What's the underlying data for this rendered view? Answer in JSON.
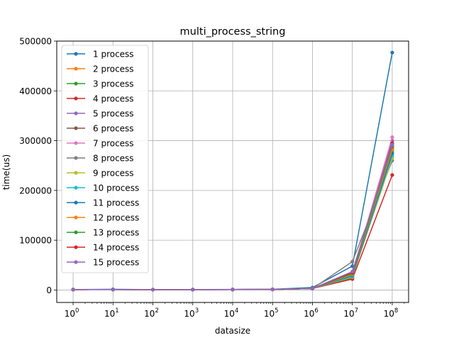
{
  "chart_data": {
    "type": "line",
    "title": "multi_process_string",
    "xlabel": "datasize",
    "ylabel": "time(us)",
    "x_scale": "log",
    "x": [
      1,
      10,
      100,
      1000,
      10000,
      100000,
      1000000,
      10000000,
      100000000
    ],
    "x_ticks": [
      {
        "base": "10",
        "exp": "0"
      },
      {
        "base": "10",
        "exp": "1"
      },
      {
        "base": "10",
        "exp": "2"
      },
      {
        "base": "10",
        "exp": "3"
      },
      {
        "base": "10",
        "exp": "4"
      },
      {
        "base": "10",
        "exp": "5"
      },
      {
        "base": "10",
        "exp": "6"
      },
      {
        "base": "10",
        "exp": "7"
      },
      {
        "base": "10",
        "exp": "8"
      }
    ],
    "ylim": [
      -25000,
      500000
    ],
    "y_ticks": [
      "0",
      "100000",
      "200000",
      "300000",
      "400000",
      "500000"
    ],
    "y_tick_values": [
      0,
      100000,
      200000,
      300000,
      400000,
      500000
    ],
    "grid": true,
    "legend_position": "top-left",
    "series": [
      {
        "name": "1 process",
        "color": "#1f77b4",
        "values": [
          1000,
          1500,
          800,
          900,
          1200,
          1500,
          5000,
          48000,
          477000
        ]
      },
      {
        "name": "2 process",
        "color": "#ff7f0e",
        "values": [
          800,
          1000,
          700,
          800,
          1000,
          1200,
          3000,
          25000,
          290000
        ]
      },
      {
        "name": "3 process",
        "color": "#2ca02c",
        "values": [
          800,
          1000,
          700,
          800,
          1000,
          1200,
          3000,
          24000,
          280000
        ]
      },
      {
        "name": "4 process",
        "color": "#d62728",
        "values": [
          800,
          1000,
          700,
          800,
          1000,
          1200,
          3000,
          22000,
          231000
        ]
      },
      {
        "name": "5 process",
        "color": "#9467bd",
        "values": [
          800,
          1000,
          700,
          800,
          1000,
          1200,
          3000,
          28000,
          300000
        ]
      },
      {
        "name": "6 process",
        "color": "#8c564b",
        "values": [
          800,
          1000,
          700,
          800,
          1000,
          1200,
          3000,
          30000,
          285000
        ]
      },
      {
        "name": "7 process",
        "color": "#e377c2",
        "values": [
          800,
          1000,
          700,
          800,
          1000,
          1200,
          3000,
          32000,
          307000
        ]
      },
      {
        "name": "8 process",
        "color": "#7f7f7f",
        "values": [
          800,
          1000,
          700,
          800,
          1000,
          1200,
          3000,
          57000,
          260000
        ]
      },
      {
        "name": "9 process",
        "color": "#bcbd22",
        "values": [
          800,
          1000,
          700,
          800,
          1000,
          1200,
          3000,
          26000,
          265000
        ]
      },
      {
        "name": "10 process",
        "color": "#17becf",
        "values": [
          800,
          1000,
          700,
          800,
          1000,
          1200,
          3000,
          27000,
          270000
        ]
      },
      {
        "name": "11 process",
        "color": "#1f77b4",
        "values": [
          800,
          1000,
          700,
          800,
          1000,
          1200,
          3000,
          29000,
          275000
        ]
      },
      {
        "name": "12 process",
        "color": "#ff7f0e",
        "values": [
          800,
          1000,
          700,
          800,
          1000,
          1200,
          3000,
          31000,
          282000
        ]
      },
      {
        "name": "13 process",
        "color": "#2ca02c",
        "values": [
          800,
          1000,
          700,
          800,
          1000,
          1200,
          3000,
          33000,
          288000
        ]
      },
      {
        "name": "14 process",
        "color": "#d62728",
        "values": [
          800,
          1000,
          700,
          800,
          1000,
          1200,
          3000,
          35000,
          295000
        ]
      },
      {
        "name": "15 process",
        "color": "#9467bd",
        "values": [
          800,
          1000,
          700,
          800,
          1000,
          1200,
          3000,
          37000,
          292000
        ]
      }
    ]
  }
}
